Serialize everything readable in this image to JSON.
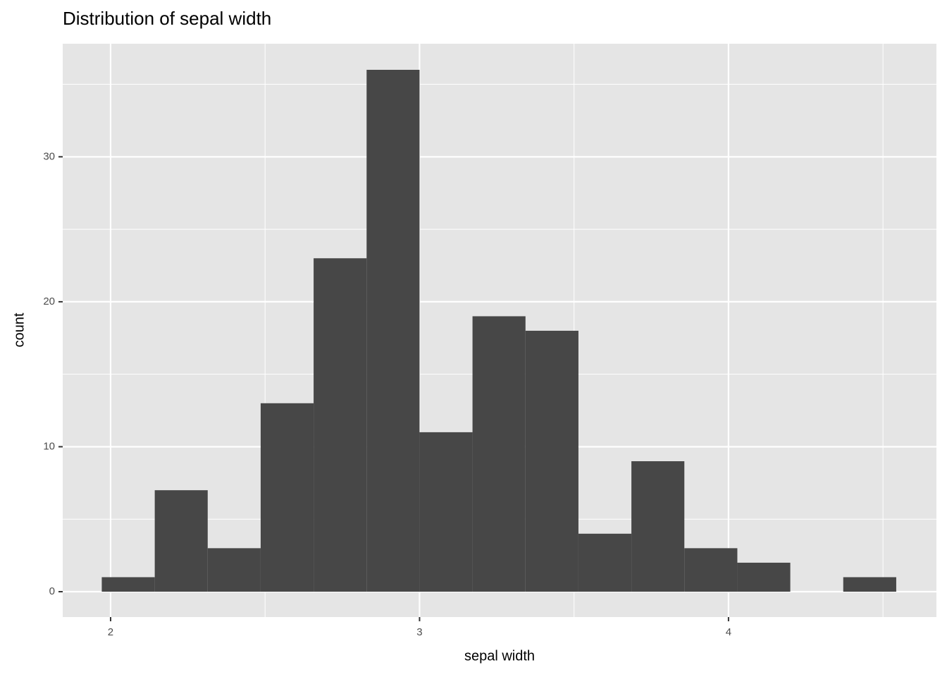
{
  "chart_data": {
    "type": "histogram",
    "title": "Distribution of sepal width",
    "x_label": "sepal width",
    "y_label": "count",
    "bins": [
      1.9714,
      2.1429,
      2.3143,
      2.4857,
      2.6571,
      2.8286,
      3.0,
      3.1714,
      3.3429,
      3.5143,
      3.6857,
      3.8571,
      4.0286,
      4.2,
      4.3714,
      4.5429
    ],
    "counts": [
      1,
      7,
      3,
      13,
      23,
      36,
      11,
      19,
      18,
      4,
      9,
      3,
      2,
      0,
      1
    ],
    "color": "#474747",
    "xlim": [
      1.845,
      4.673
    ],
    "xticks": [
      2,
      3,
      4
    ],
    "minor_xticks": [
      2.5,
      3.5,
      4.5
    ],
    "ylim": [
      -1.75,
      37.8
    ],
    "yticks": [
      0,
      10,
      20,
      30
    ],
    "minor_yticks": [
      5,
      15,
      25,
      35
    ],
    "grid": true
  }
}
